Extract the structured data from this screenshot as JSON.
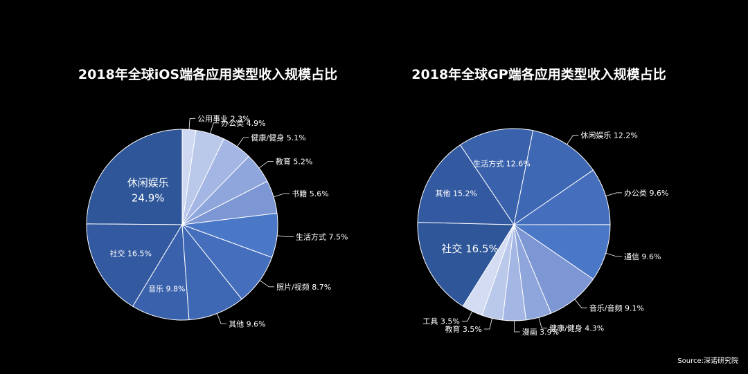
{
  "chart_data": [
    {
      "type": "pie",
      "title": "2018年全球iOS端各应用类型收入规模占比",
      "colors": {
        "slice_palette": [
          "#2e5698",
          "#3b64ad",
          "#4a73c2",
          "#7f98d6",
          "#98ade0",
          "#b8c6ea",
          "#cdd7f0"
        ],
        "stroke": "#ffffff"
      },
      "slices": [
        {
          "label": "休闲娱乐",
          "value": 24.9,
          "display": "24.9%",
          "color": "#2e5698"
        },
        {
          "label": "社交",
          "value": 16.5,
          "display": "16.5%",
          "color": "#3359a0"
        },
        {
          "label": "音乐",
          "value": 9.8,
          "display": "9.8%",
          "color": "#3a62ac"
        },
        {
          "label": "其他",
          "value": 9.6,
          "display": "9.6%",
          "color": "#3f68b4"
        },
        {
          "label": "照片/视频",
          "value": 8.7,
          "display": "8.7%",
          "color": "#456fbd"
        },
        {
          "label": "生活方式",
          "value": 7.5,
          "display": "7.5%",
          "color": "#4b77c7"
        },
        {
          "label": "书籍",
          "value": 5.6,
          "display": "5.6%",
          "color": "#7d96d4"
        },
        {
          "label": "教育",
          "value": 5.2,
          "display": "5.2%",
          "color": "#8fa6dc"
        },
        {
          "label": "健康/健身",
          "value": 5.1,
          "display": "5.1%",
          "color": "#a4b6e3"
        },
        {
          "label": "办公类",
          "value": 4.9,
          "display": "4.9%",
          "color": "#bac8ea"
        },
        {
          "label": "公用事业",
          "value": 2.3,
          "display": "2.3%",
          "color": "#cfd9f1"
        }
      ]
    },
    {
      "type": "pie",
      "title": "2018年全球GP端各应用类型收入规模占比",
      "colors": {
        "slice_palette": [
          "#2e5698",
          "#3b64ad",
          "#4a73c2",
          "#7f98d6",
          "#98ade0",
          "#b8c6ea",
          "#cdd7f0"
        ],
        "stroke": "#ffffff"
      },
      "slices": [
        {
          "label": "社交",
          "value": 16.5,
          "display": "16.5%",
          "color": "#2e5698"
        },
        {
          "label": "其他",
          "value": 15.2,
          "display": "15.2%",
          "color": "#3359a0"
        },
        {
          "label": "生活方式",
          "value": 12.6,
          "display": "12.6%",
          "color": "#3a62ac"
        },
        {
          "label": "休闲娱乐",
          "value": 12.2,
          "display": "12.2%",
          "color": "#3f68b4"
        },
        {
          "label": "办公类",
          "value": 9.6,
          "display": "9.6%",
          "color": "#456fbd"
        },
        {
          "label": "通信",
          "value": 9.6,
          "display": "9.6%",
          "color": "#4b77c7"
        },
        {
          "label": "音乐/音频",
          "value": 9.1,
          "display": "9.1%",
          "color": "#7d96d4"
        },
        {
          "label": "健康/健身",
          "value": 4.3,
          "display": "4.3%",
          "color": "#8fa6dc"
        },
        {
          "label": "漫画",
          "value": 3.9,
          "display": "3.9%",
          "color": "#a4b6e3"
        },
        {
          "label": "教育",
          "value": 3.5,
          "display": "3.5%",
          "color": "#bac8ea"
        },
        {
          "label": "工具",
          "value": 3.5,
          "display": "3.5%",
          "color": "#d3dcf3"
        }
      ]
    }
  ],
  "source": "Source:深诺研究院"
}
